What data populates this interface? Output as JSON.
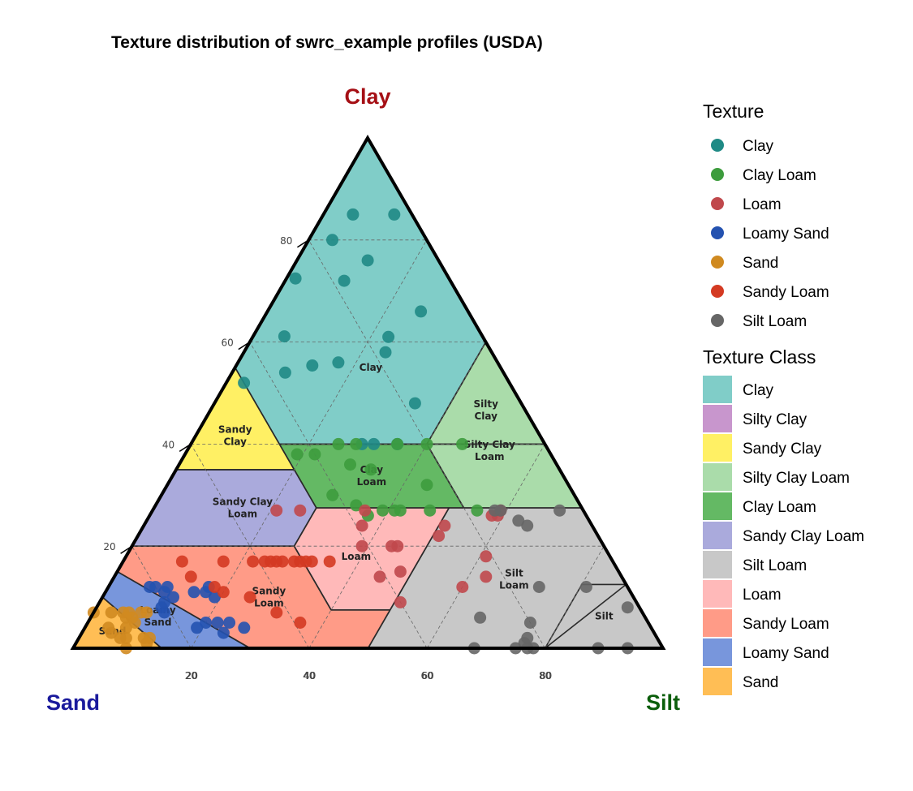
{
  "chart_data": {
    "type": "scatter",
    "title": "Texture distribution of swrc_example profiles (USDA)",
    "axes": {
      "clay": {
        "label": "Clay",
        "color": "#a50f15"
      },
      "sand": {
        "label": "Sand",
        "color": "#1a1a9c"
      },
      "silt": {
        "label": "Silt",
        "color": "#0b5e0b"
      },
      "ticks": [
        "20",
        "40",
        "60",
        "80"
      ]
    },
    "regions": [
      {
        "name": "Clay",
        "label": "Clay",
        "color": "#80CDC8",
        "poly": [
          [
            45,
            55,
            0
          ],
          [
            0,
            100,
            0
          ],
          [
            0,
            40,
            60
          ],
          [
            20,
            40,
            40
          ],
          [
            45,
            40,
            15
          ]
        ]
      },
      {
        "name": "Silty Clay",
        "label": "Silty\nClay",
        "color": "#C896CD",
        "poly": [
          [
            0,
            60,
            40
          ],
          [
            0,
            40,
            60
          ],
          [
            20,
            40,
            40
          ]
        ]
      },
      {
        "name": "Sandy Clay",
        "label": "Sandy\nClay",
        "color": "#FFF064",
        "poly": [
          [
            45,
            35,
            20
          ],
          [
            65,
            35,
            0
          ],
          [
            45,
            55,
            0
          ]
        ]
      },
      {
        "name": "Silty Clay Loam",
        "label": "Silty Clay\nLoam",
        "color": "#AADCAA",
        "poly": [
          [
            0,
            60,
            40
          ],
          [
            20,
            40,
            40
          ],
          [
            20,
            27.5,
            52.5
          ],
          [
            0,
            27.5,
            72.5
          ]
        ]
      },
      {
        "name": "Clay Loam",
        "label": "Clay\nLoam",
        "color": "#64B964",
        "poly": [
          [
            20,
            40,
            40
          ],
          [
            45,
            40,
            15
          ],
          [
            45,
            27.5,
            27.5
          ],
          [
            20,
            27.5,
            52.5
          ]
        ]
      },
      {
        "name": "Sandy Clay Loam",
        "label": "Sandy Clay\nLoam",
        "color": "#AAAADC",
        "poly": [
          [
            45,
            27.5,
            27.5
          ],
          [
            45,
            35,
            20
          ],
          [
            65,
            35,
            0
          ],
          [
            80,
            20,
            0
          ],
          [
            52.5,
            20,
            27.5
          ]
        ]
      },
      {
        "name": "Silt Loam",
        "label": "Silt\nLoam",
        "color": "#C8C8C8",
        "poly": [
          [
            0,
            12.5,
            87.5
          ],
          [
            20,
            0,
            80
          ],
          [
            50,
            0,
            50
          ],
          [
            22.5,
            27.5,
            50
          ],
          [
            0,
            27.5,
            72.5
          ]
        ]
      },
      {
        "name": "Silt",
        "label": "Silt",
        "color": "#C8C8C8",
        "poly": [
          [
            0,
            12.5,
            87.5
          ],
          [
            7.5,
            12.5,
            80
          ],
          [
            20,
            0,
            80
          ],
          [
            0,
            0,
            100
          ]
        ]
      },
      {
        "name": "Loam",
        "label": "Loam",
        "color": "#FFB9B9",
        "poly": [
          [
            22.5,
            27.5,
            50
          ],
          [
            45,
            27.5,
            27.5
          ],
          [
            52.5,
            20,
            27.5
          ],
          [
            52.5,
            7.5,
            40
          ],
          [
            42.5,
            7.5,
            50
          ]
        ]
      },
      {
        "name": "Sandy Loam",
        "label": "Sandy\nLoam",
        "color": "#FF9B87",
        "poly": [
          [
            80,
            20,
            0
          ],
          [
            52.5,
            20,
            27.5
          ],
          [
            52.5,
            7.5,
            40
          ],
          [
            42.5,
            7.5,
            50
          ],
          [
            50,
            0,
            50
          ],
          [
            70,
            0,
            30
          ],
          [
            85,
            15,
            0
          ]
        ]
      },
      {
        "name": "Loamy Sand",
        "label": "Loamy\nSand",
        "color": "#7896DC",
        "poly": [
          [
            85,
            15,
            0
          ],
          [
            70,
            0,
            30
          ],
          [
            85,
            0,
            15
          ],
          [
            90,
            10,
            0
          ]
        ]
      },
      {
        "name": "Sand",
        "label": "Sand",
        "color": "#FFBE55",
        "poly": [
          [
            90,
            10,
            0
          ],
          [
            85,
            0,
            15
          ],
          [
            100,
            0,
            0
          ]
        ]
      }
    ],
    "series": [
      {
        "name": "Clay",
        "color": "#1F8A85",
        "points": [
          [
            10,
            85
          ],
          [
            16,
            80
          ],
          [
            3,
            85
          ],
          [
            12,
            76
          ],
          [
            40,
            77
          ],
          [
            18,
            72
          ],
          [
            27,
            75
          ],
          [
            8,
            66
          ],
          [
            37,
            70
          ],
          [
            16,
            61
          ],
          [
            18,
            58
          ],
          [
            27,
            56
          ],
          [
            18,
            48
          ],
          [
            37,
            54
          ],
          [
            45,
            52
          ],
          [
            25,
            40
          ],
          [
            29,
            40
          ],
          [
            31,
            40
          ]
        ]
      },
      {
        "name": "Clay Loam",
        "color": "#3D9C3D",
        "points": [
          [
            43,
            38
          ],
          [
            40,
            38
          ],
          [
            35,
            40
          ],
          [
            32,
            40
          ],
          [
            25,
            40
          ],
          [
            20,
            40
          ],
          [
            14,
            40
          ],
          [
            35,
            36
          ],
          [
            32,
            35
          ],
          [
            24,
            32
          ],
          [
            41,
            30
          ],
          [
            38,
            28
          ],
          [
            37,
            26
          ],
          [
            31,
            27
          ],
          [
            34,
            27
          ],
          [
            32,
            27
          ],
          [
            26,
            27
          ],
          [
            18,
            27
          ]
        ]
      },
      {
        "name": "Loam",
        "color": "#C0484C",
        "points": [
          [
            52,
            27
          ],
          [
            48,
            27
          ],
          [
            37,
            27
          ],
          [
            14,
            27
          ],
          [
            15,
            26
          ],
          [
            16,
            26
          ],
          [
            39,
            24
          ],
          [
            25,
            24
          ],
          [
            27,
            22
          ],
          [
            35,
            20
          ],
          [
            36,
            20
          ],
          [
            41,
            20
          ],
          [
            21,
            18
          ],
          [
            23,
            14
          ],
          [
            37,
            15
          ],
          [
            41,
            14
          ],
          [
            40,
            9
          ],
          [
            28,
            12
          ]
        ]
      },
      {
        "name": "Loamy Sand",
        "color": "#2452B0",
        "points": [
          [
            81,
            12
          ],
          [
            80,
            12
          ],
          [
            78,
            12
          ],
          [
            71,
            12
          ],
          [
            79,
            11
          ],
          [
            74,
            11
          ],
          [
            72,
            11
          ],
          [
            71,
            10
          ],
          [
            78,
            10
          ],
          [
            80,
            9
          ],
          [
            81,
            8
          ],
          [
            81,
            7
          ],
          [
            77,
            4
          ],
          [
            75,
            5
          ],
          [
            73,
            5
          ],
          [
            71,
            5
          ],
          [
            69,
            4
          ],
          [
            73,
            3
          ]
        ]
      },
      {
        "name": "Sand",
        "color": "#D08A20",
        "points": [
          [
            93,
            7
          ],
          [
            90,
            7
          ],
          [
            88,
            7
          ],
          [
            87,
            7
          ],
          [
            85,
            7
          ],
          [
            84,
            7
          ],
          [
            88,
            6
          ],
          [
            87,
            6
          ],
          [
            87,
            5
          ],
          [
            92,
            4
          ],
          [
            92,
            3
          ],
          [
            89,
            4
          ],
          [
            90,
            2
          ],
          [
            91,
            2
          ],
          [
            87,
            2
          ],
          [
            86,
            2
          ],
          [
            87,
            1
          ],
          [
            91,
            0
          ]
        ]
      },
      {
        "name": "Sandy Loam",
        "color": "#D43A22",
        "points": [
          [
            73,
            17
          ],
          [
            73,
            14
          ],
          [
            66,
            17
          ],
          [
            61,
            17
          ],
          [
            58,
            17
          ],
          [
            57,
            17
          ],
          [
            54,
            17
          ],
          [
            52,
            17
          ],
          [
            51,
            17
          ],
          [
            70,
            12
          ],
          [
            69,
            11
          ],
          [
            65,
            10
          ],
          [
            59,
            17
          ],
          [
            56,
            17
          ],
          [
            53,
            17
          ],
          [
            48,
            17
          ],
          [
            62,
            7
          ],
          [
            59,
            5
          ]
        ]
      },
      {
        "name": "Silt Loam",
        "color": "#666666",
        "points": [
          [
            15,
            27
          ],
          [
            14,
            27
          ],
          [
            4,
            27
          ],
          [
            12,
            25
          ],
          [
            11,
            24
          ],
          [
            15,
            12
          ],
          [
            7,
            12
          ],
          [
            2,
            8
          ],
          [
            28,
            6
          ],
          [
            20,
            5
          ],
          [
            22,
            2
          ],
          [
            23,
            1
          ],
          [
            22,
            0
          ],
          [
            23,
            0
          ],
          [
            25,
            0
          ],
          [
            32,
            0
          ],
          [
            11,
            0
          ],
          [
            6,
            0
          ]
        ]
      }
    ],
    "legend_texture": {
      "title": "Texture",
      "items": [
        "Clay",
        "Clay Loam",
        "Loam",
        "Loamy Sand",
        "Sand",
        "Sandy Loam",
        "Silt Loam"
      ]
    },
    "legend_class": {
      "title": "Texture Class",
      "items": [
        {
          "label": "Clay",
          "color": "#80CDC8"
        },
        {
          "label": "Silty Clay",
          "color": "#C896CD"
        },
        {
          "label": "Sandy Clay",
          "color": "#FFF064"
        },
        {
          "label": "Silty Clay Loam",
          "color": "#AADCAA"
        },
        {
          "label": "Clay Loam",
          "color": "#64B964"
        },
        {
          "label": "Sandy Clay Loam",
          "color": "#AAAADC"
        },
        {
          "label": "Silt Loam",
          "color": "#C8C8C8"
        },
        {
          "label": "Loam",
          "color": "#FFB9B9"
        },
        {
          "label": "Sandy Loam",
          "color": "#FF9B87"
        },
        {
          "label": "Loamy Sand",
          "color": "#7896DC"
        },
        {
          "label": "Sand",
          "color": "#FFBE55"
        }
      ]
    }
  }
}
